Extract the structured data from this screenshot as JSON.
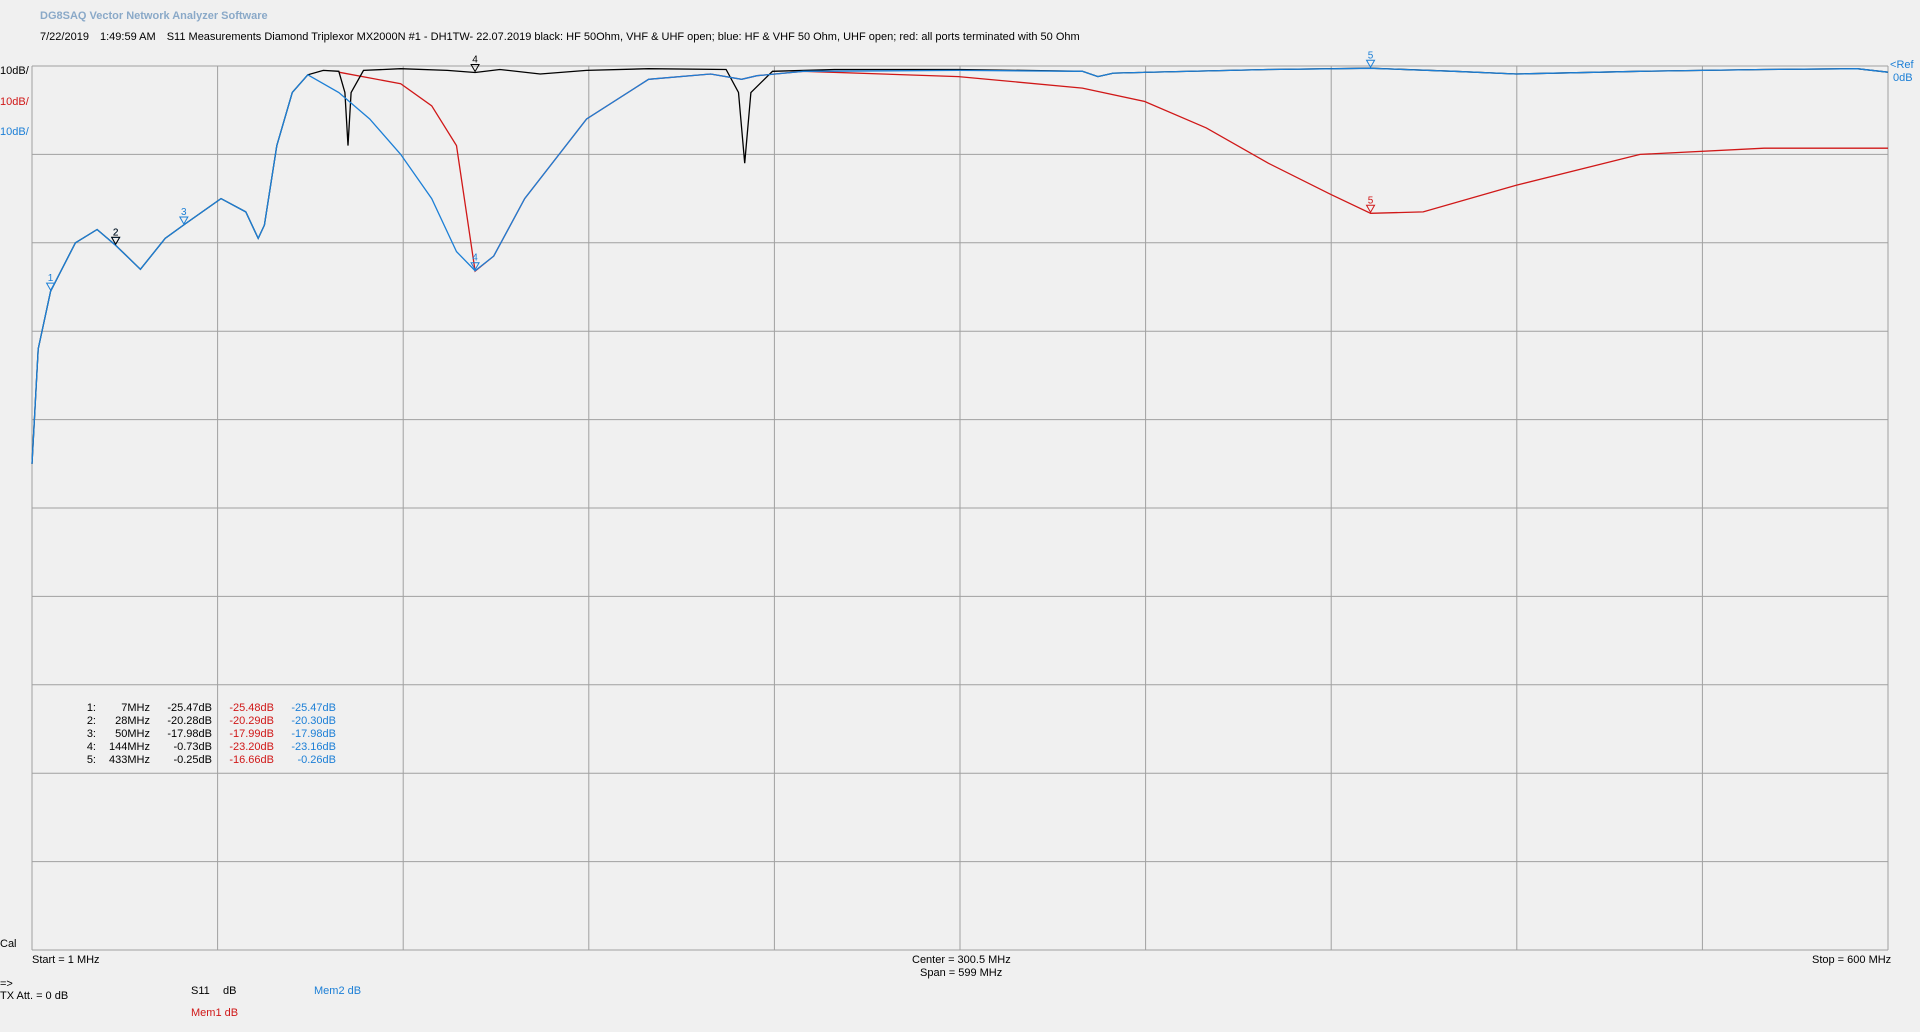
{
  "app_title": "DG8SAQ Vector Network Analyzer Software",
  "header": {
    "date": "7/22/2019",
    "time": "1:49:59 AM",
    "description": "S11 Measurements Diamond Triplexor MX2000N #1 - DH1TW- 22.07.2019 black: HF 50Ohm, VHF & UHF open; blue: HF & VHF 50 Ohm, UHF open; red: all ports terminated with 50 Ohm"
  },
  "scales": [
    {
      "label": "10dB/",
      "color": "#000000"
    },
    {
      "label": "10dB/",
      "color": "#d01818"
    },
    {
      "label": "10dB/",
      "color": "#1c7fd6"
    }
  ],
  "ref": {
    "label": "Ref",
    "value": "0dB"
  },
  "cal_label": "Cal",
  "footer": {
    "start": "Start = 1 MHz",
    "center": "Center = 300.5 MHz",
    "span": "Span = 599 MHz",
    "stop": "Stop = 600 MHz",
    "arrow": "=>",
    "tx_att": "TX Att.  = 0 dB",
    "s11_label": "S11",
    "s11_unit": "dB",
    "mem1": "Mem1 dB",
    "mem2": "Mem2 dB"
  },
  "colors": {
    "s11": "#000000",
    "mem1": "#d01818",
    "mem2": "#1c7fd6",
    "grid": "#a0a0a0"
  },
  "markers": [
    {
      "idx": "1:",
      "freq": "7MHz",
      "s11": "-25.47dB",
      "mem1": "-25.48dB",
      "mem2": "-25.47dB"
    },
    {
      "idx": "2:",
      "freq": "28MHz",
      "s11": "-20.28dB",
      "mem1": "-20.29dB",
      "mem2": "-20.30dB"
    },
    {
      "idx": "3:",
      "freq": "50MHz",
      "s11": "-17.98dB",
      "mem1": "-17.99dB",
      "mem2": "-17.98dB"
    },
    {
      "idx": "4:",
      "freq": "144MHz",
      "s11": "-0.73dB",
      "mem1": "-23.20dB",
      "mem2": "-23.16dB"
    },
    {
      "idx": "5:",
      "freq": "433MHz",
      "s11": "-0.25dB",
      "mem1": "-16.66dB",
      "mem2": "-0.26dB"
    }
  ],
  "chart_data": {
    "type": "line",
    "xlim": [
      1,
      600
    ],
    "ylim": [
      -100,
      0
    ],
    "x_unit": "MHz",
    "y_unit": "dB",
    "grid": true,
    "x_divisions": 10,
    "y_divisions": 10,
    "series": [
      {
        "name": "S11",
        "color": "#000000",
        "points": [
          [
            1,
            -45
          ],
          [
            3,
            -32
          ],
          [
            7,
            -25.47
          ],
          [
            15,
            -20
          ],
          [
            22,
            -18.5
          ],
          [
            28,
            -20.28
          ],
          [
            36,
            -23
          ],
          [
            44,
            -19.5
          ],
          [
            50,
            -17.98
          ],
          [
            62,
            -15
          ],
          [
            70,
            -16.5
          ],
          [
            74,
            -19.5
          ],
          [
            76,
            -18
          ],
          [
            80,
            -9
          ],
          [
            85,
            -3
          ],
          [
            90,
            -1
          ],
          [
            95,
            -0.5
          ],
          [
            100,
            -0.6
          ],
          [
            102,
            -3
          ],
          [
            103,
            -9
          ],
          [
            104,
            -3
          ],
          [
            108,
            -0.5
          ],
          [
            120,
            -0.3
          ],
          [
            135,
            -0.5
          ],
          [
            144,
            -0.73
          ],
          [
            152,
            -0.4
          ],
          [
            165,
            -0.9
          ],
          [
            180,
            -0.5
          ],
          [
            200,
            -0.3
          ],
          [
            225,
            -0.4
          ],
          [
            229,
            -3
          ],
          [
            231,
            -11
          ],
          [
            233,
            -3
          ],
          [
            240,
            -0.6
          ],
          [
            260,
            -0.4
          ],
          [
            300,
            -0.4
          ],
          [
            340,
            -0.6
          ],
          [
            345,
            -1.2
          ],
          [
            350,
            -0.8
          ],
          [
            400,
            -0.4
          ],
          [
            433,
            -0.25
          ],
          [
            460,
            -0.6
          ],
          [
            480,
            -0.9
          ],
          [
            520,
            -0.6
          ],
          [
            560,
            -0.4
          ],
          [
            590,
            -0.3
          ],
          [
            600,
            -0.7
          ]
        ]
      },
      {
        "name": "Mem1",
        "color": "#d01818",
        "points": [
          [
            100,
            -0.7
          ],
          [
            120,
            -2
          ],
          [
            130,
            -4.5
          ],
          [
            138,
            -9
          ],
          [
            144,
            -23.2
          ],
          [
            150,
            -21.5
          ],
          [
            160,
            -15
          ],
          [
            180,
            -6
          ],
          [
            200,
            -1.5
          ],
          [
            220,
            -0.9
          ],
          [
            230,
            -1.5
          ],
          [
            235,
            -1.1
          ],
          [
            250,
            -0.6
          ],
          [
            300,
            -1.2
          ],
          [
            340,
            -2.5
          ],
          [
            360,
            -4
          ],
          [
            380,
            -7
          ],
          [
            400,
            -11
          ],
          [
            420,
            -14.5
          ],
          [
            433,
            -16.66
          ],
          [
            450,
            -16.5
          ],
          [
            480,
            -13.5
          ],
          [
            520,
            -10
          ],
          [
            560,
            -9.3
          ],
          [
            600,
            -9.3
          ]
        ]
      },
      {
        "name": "Mem2",
        "color": "#1c7fd6",
        "points": [
          [
            1,
            -45
          ],
          [
            3,
            -32
          ],
          [
            7,
            -25.47
          ],
          [
            15,
            -20
          ],
          [
            22,
            -18.5
          ],
          [
            28,
            -20.3
          ],
          [
            36,
            -23
          ],
          [
            44,
            -19.5
          ],
          [
            50,
            -17.98
          ],
          [
            62,
            -15
          ],
          [
            70,
            -16.5
          ],
          [
            74,
            -19.5
          ],
          [
            76,
            -18
          ],
          [
            80,
            -9
          ],
          [
            85,
            -3
          ],
          [
            90,
            -1
          ],
          [
            100,
            -3
          ],
          [
            110,
            -6
          ],
          [
            120,
            -10
          ],
          [
            130,
            -15
          ],
          [
            138,
            -21
          ],
          [
            144,
            -23.16
          ],
          [
            150,
            -21.5
          ],
          [
            160,
            -15
          ],
          [
            180,
            -6
          ],
          [
            200,
            -1.5
          ],
          [
            220,
            -0.9
          ],
          [
            230,
            -1.5
          ],
          [
            235,
            -1.1
          ],
          [
            250,
            -0.6
          ],
          [
            300,
            -0.5
          ],
          [
            340,
            -0.6
          ],
          [
            345,
            -1.2
          ],
          [
            350,
            -0.8
          ],
          [
            400,
            -0.4
          ],
          [
            433,
            -0.26
          ],
          [
            460,
            -0.6
          ],
          [
            480,
            -0.9
          ],
          [
            520,
            -0.6
          ],
          [
            560,
            -0.4
          ],
          [
            590,
            -0.3
          ],
          [
            600,
            -0.7
          ]
        ]
      }
    ],
    "marker_points": [
      {
        "label": "1",
        "series": "Mem2",
        "x": 7,
        "y": -25.47
      },
      {
        "label": "2",
        "series": "Mem2",
        "x": 28,
        "y": -20.3
      },
      {
        "label": "2",
        "series": "S11",
        "x": 28,
        "y": -20.28
      },
      {
        "label": "3",
        "series": "Mem2",
        "x": 50,
        "y": -17.98
      },
      {
        "label": "4",
        "series": "S11",
        "x": 144,
        "y": -0.73
      },
      {
        "label": "4",
        "series": "Mem2",
        "x": 144,
        "y": -23.16
      },
      {
        "label": "5",
        "series": "Mem2",
        "x": 433,
        "y": -0.26
      },
      {
        "label": "5",
        "series": "Mem1",
        "x": 433,
        "y": -16.66
      }
    ]
  }
}
